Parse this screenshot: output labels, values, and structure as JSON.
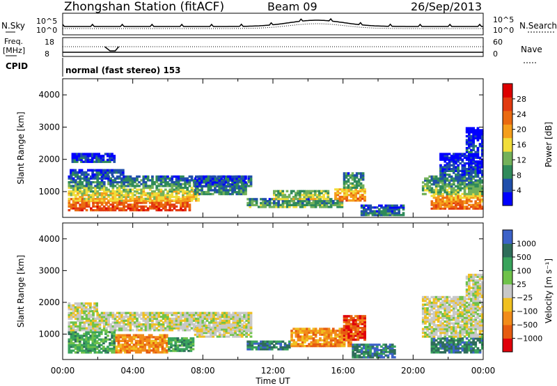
{
  "header": {
    "station": "Zhongshan Station (fitACF)",
    "beam": "Beam 09",
    "date": "26/Sep/2013"
  },
  "top_panels": {
    "nsky_label": "N.Sky",
    "nsky_ticks": [
      "10^5",
      "10^0"
    ],
    "nsearch_label": "N.Search",
    "nsearch_ticks": [
      "10^5",
      "10^0"
    ],
    "freq_label": "Freq.",
    "freq_unit": "[MHz]",
    "freq_ticks": [
      "18",
      "8"
    ],
    "nave_label": "Nave",
    "nave_ticks": [
      "60",
      "0"
    ],
    "cpid_label": "CPID",
    "cpid_text": "normal (fast stereo) 153"
  },
  "colors": {
    "power": [
      "#0000ff",
      "#1f4eaa",
      "#2f8a5a",
      "#73b15a",
      "#f1dd3a",
      "#f59e1b",
      "#ea6a10",
      "#e23a10",
      "#dd0000"
    ],
    "velocity": [
      "#3c62c8",
      "#2e6d5a",
      "#39a35c",
      "#6fc24a",
      "#c8c8c8",
      "#f0c020",
      "#f28c1a",
      "#e65b10",
      "#e0000a"
    ]
  },
  "chart_data": [
    {
      "type": "heatmap",
      "name": "power",
      "ylabel": "Slant Range [km]",
      "ylim": [
        200,
        4500
      ],
      "yticks": [
        "1000",
        "2000",
        "3000",
        "4000"
      ],
      "xlim": [
        "00:00",
        "24:00"
      ],
      "colorbar_label": "Power [dB]",
      "colorbar_ticks": [
        "4",
        "8",
        "12",
        "16",
        "20",
        "24",
        "28"
      ],
      "colorbar_range": [
        0,
        32
      ],
      "patches": [
        {
          "t": [
            0.3,
            7.3
          ],
          "r": [
            400,
            800
          ],
          "v": 27
        },
        {
          "t": [
            0.3,
            7.8
          ],
          "r": [
            700,
            1150
          ],
          "v": 18
        },
        {
          "t": [
            0.3,
            10.8
          ],
          "r": [
            1150,
            1500
          ],
          "v": 10
        },
        {
          "t": [
            0.4,
            3.5
          ],
          "r": [
            1500,
            1700
          ],
          "v": 7
        },
        {
          "t": [
            0.5,
            3.0
          ],
          "r": [
            1900,
            2200
          ],
          "v": 6
        },
        {
          "t": [
            7.5,
            10.5
          ],
          "r": [
            900,
            1500
          ],
          "v": 9
        },
        {
          "t": [
            10.5,
            16.0
          ],
          "r": [
            500,
            800
          ],
          "v": 12
        },
        {
          "t": [
            12.0,
            15.2
          ],
          "r": [
            750,
            1050
          ],
          "v": 16
        },
        {
          "t": [
            15.5,
            17.3
          ],
          "r": [
            700,
            1100
          ],
          "v": 22
        },
        {
          "t": [
            16.0,
            17.2
          ],
          "r": [
            1100,
            1600
          ],
          "v": 12
        },
        {
          "t": [
            17.0,
            19.5
          ],
          "r": [
            250,
            600
          ],
          "v": 9
        },
        {
          "t": [
            21.0,
            24.0
          ],
          "r": [
            450,
            900
          ],
          "v": 24
        },
        {
          "t": [
            20.5,
            24.0
          ],
          "r": [
            900,
            1500
          ],
          "v": 13
        },
        {
          "t": [
            21.5,
            24.0
          ],
          "r": [
            1500,
            2200
          ],
          "v": 6
        },
        {
          "t": [
            23.0,
            24.0
          ],
          "r": [
            2200,
            3000
          ],
          "v": 5
        }
      ]
    },
    {
      "type": "heatmap",
      "name": "velocity",
      "ylabel": "Slant Range [km]",
      "ylim": [
        200,
        4500
      ],
      "yticks": [
        "1000",
        "2000",
        "3000",
        "4000"
      ],
      "xlim": [
        "00:00",
        "24:00"
      ],
      "xticks": [
        "00:00",
        "04:00",
        "08:00",
        "12:00",
        "16:00",
        "20:00",
        "00:00"
      ],
      "xlabel": "Time UT",
      "colorbar_label": "Velocity [m s⁻¹]",
      "colorbar_ticks": [
        "1000",
        "500",
        "100",
        "25",
        "−25",
        "−100",
        "−500",
        "−1000"
      ],
      "patches": [
        {
          "t": [
            0.3,
            3.0
          ],
          "r": [
            400,
            1100
          ],
          "v": 2
        },
        {
          "t": [
            3.0,
            6.0
          ],
          "r": [
            400,
            1000
          ],
          "v": 6
        },
        {
          "t": [
            6.0,
            7.5
          ],
          "r": [
            450,
            900
          ],
          "v": 2
        },
        {
          "t": [
            0.3,
            10.8
          ],
          "r": [
            1100,
            1700
          ],
          "v": 4
        },
        {
          "t": [
            0.3,
            2.0
          ],
          "r": [
            1700,
            2000
          ],
          "v": 4
        },
        {
          "t": [
            7.5,
            10.8
          ],
          "r": [
            900,
            1300
          ],
          "v": 4
        },
        {
          "t": [
            10.5,
            13.0
          ],
          "r": [
            500,
            800
          ],
          "v": 1
        },
        {
          "t": [
            13.0,
            16.5
          ],
          "r": [
            600,
            1200
          ],
          "v": 6
        },
        {
          "t": [
            16.0,
            17.3
          ],
          "r": [
            800,
            1600
          ],
          "v": 7
        },
        {
          "t": [
            16.5,
            19.0
          ],
          "r": [
            250,
            700
          ],
          "v": 1
        },
        {
          "t": [
            21.0,
            24.0
          ],
          "r": [
            400,
            900
          ],
          "v": 1
        },
        {
          "t": [
            20.5,
            24.0
          ],
          "r": [
            900,
            2200
          ],
          "v": 4
        },
        {
          "t": [
            23.0,
            24.0
          ],
          "r": [
            2200,
            2900
          ],
          "v": 4
        }
      ]
    }
  ]
}
